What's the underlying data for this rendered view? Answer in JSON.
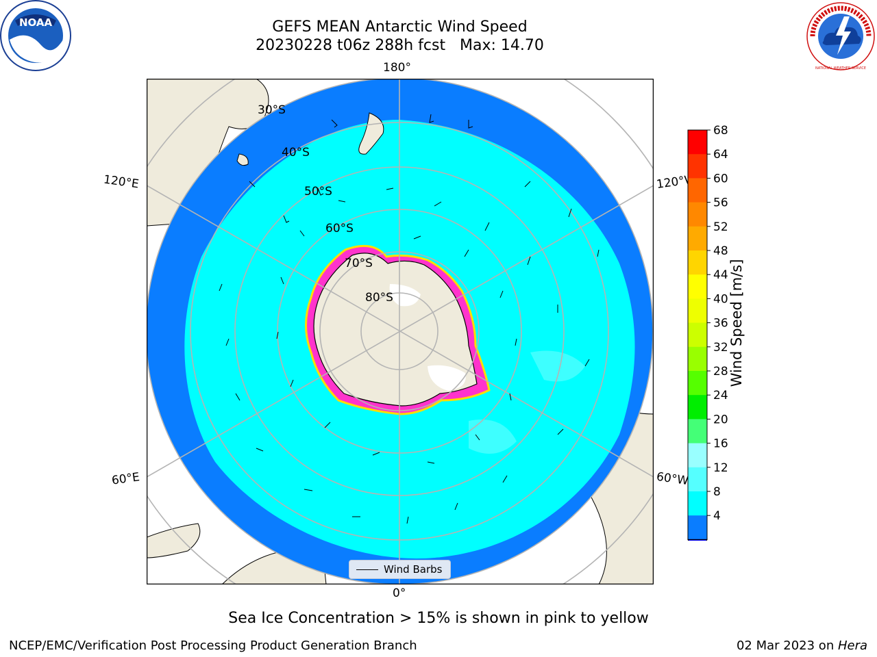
{
  "title": {
    "line1": "GEFS MEAN Antarctic Wind Speed",
    "line2": "20230228 t06z 288h fcst   Max: 14.70"
  },
  "logos": {
    "left": "noaa-logo",
    "right": "national-weather-service-logo",
    "left_text": "NOAA",
    "right_text": "NATIONAL WEATHER SERVICE"
  },
  "map": {
    "projection": "south-polar-stereographic",
    "longitude_labels": {
      "top": "180°",
      "bottom": "0°",
      "upper_left": "120°E",
      "upper_right": "120°W",
      "lower_left": "60°E",
      "lower_right": "60°W"
    },
    "latitude_labels": [
      "30°S",
      "40°S",
      "50°S",
      "60°S",
      "70°S",
      "80°S"
    ],
    "colors": {
      "land": "#efebdc",
      "ice_sheet": "#ffffff",
      "ocean_4_8": "#0a7dff",
      "ocean_8_12": "#00ffff",
      "ocean_12_16": "#3effff",
      "sea_ice": "#ff33cc",
      "sea_ice_edge": "#ffdd00",
      "graticule": "#b4b4b4"
    }
  },
  "legend": {
    "label": "Wind Barbs"
  },
  "colorbar": {
    "label": "Wind Speed [m/s]",
    "ticks": [
      "68",
      "64",
      "60",
      "56",
      "52",
      "48",
      "44",
      "40",
      "36",
      "32",
      "28",
      "24",
      "20",
      "16",
      "12",
      "8",
      "4"
    ],
    "colors": [
      "#ff0000",
      "#ff3300",
      "#ff6600",
      "#ff8800",
      "#ffaa00",
      "#ffd500",
      "#ffff00",
      "#eeff00",
      "#ccff00",
      "#99ff00",
      "#55ff00",
      "#00ee00",
      "#44ff77",
      "#99ffff",
      "#55ffff",
      "#00ffff",
      "#0a7dff"
    ],
    "extend_color": "#0000ff"
  },
  "caption": "Sea Ice Concentration > 15% is shown in pink to yellow",
  "footer": {
    "left": "NCEP/EMC/Verification Post Processing Product Generation Branch",
    "date": "02 Mar 2023 on ",
    "machine": "Hera"
  }
}
